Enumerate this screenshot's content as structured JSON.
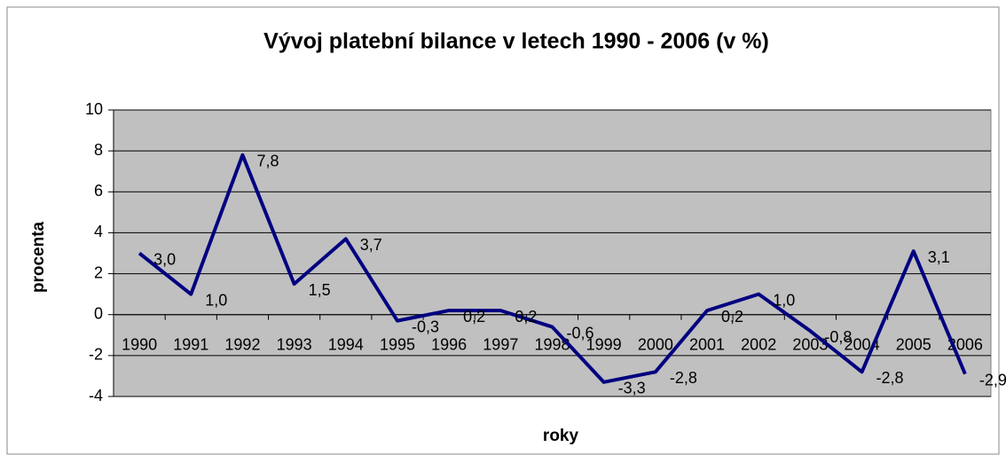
{
  "chart_data": {
    "type": "line",
    "title": "Vývoj platební bilance v letech 1990 - 2006 (v %)",
    "x_label": "roky",
    "y_label": "procenta",
    "categories": [
      "1990",
      "1991",
      "1992",
      "1993",
      "1994",
      "1995",
      "1996",
      "1997",
      "1998",
      "1999",
      "2000",
      "2001",
      "2002",
      "2003",
      "2004",
      "2005",
      "2006"
    ],
    "series": [
      {
        "name": null,
        "color": "#000080",
        "values": [
          3.0,
          1.0,
          7.8,
          1.5,
          3.7,
          -0.3,
          0.2,
          0.2,
          -0.6,
          -3.3,
          -2.8,
          0.2,
          1.0,
          -0.8,
          -2.8,
          3.1,
          -2.9
        ],
        "value_labels": [
          "3,0",
          "1,0",
          "7,8",
          "1,5",
          "3,7",
          "-0,3",
          "0,2",
          "0,2",
          "-0,6",
          "-3,3",
          "-2,8",
          "0,2",
          "1,0",
          "-0,8",
          "-2,8",
          "3,1",
          "-2,9"
        ]
      }
    ],
    "ylim": [
      -4,
      10
    ],
    "yticks": [
      -4,
      -2,
      0,
      2,
      4,
      6,
      8,
      10
    ],
    "grid": true,
    "plot_background": "#c0c0c0"
  }
}
